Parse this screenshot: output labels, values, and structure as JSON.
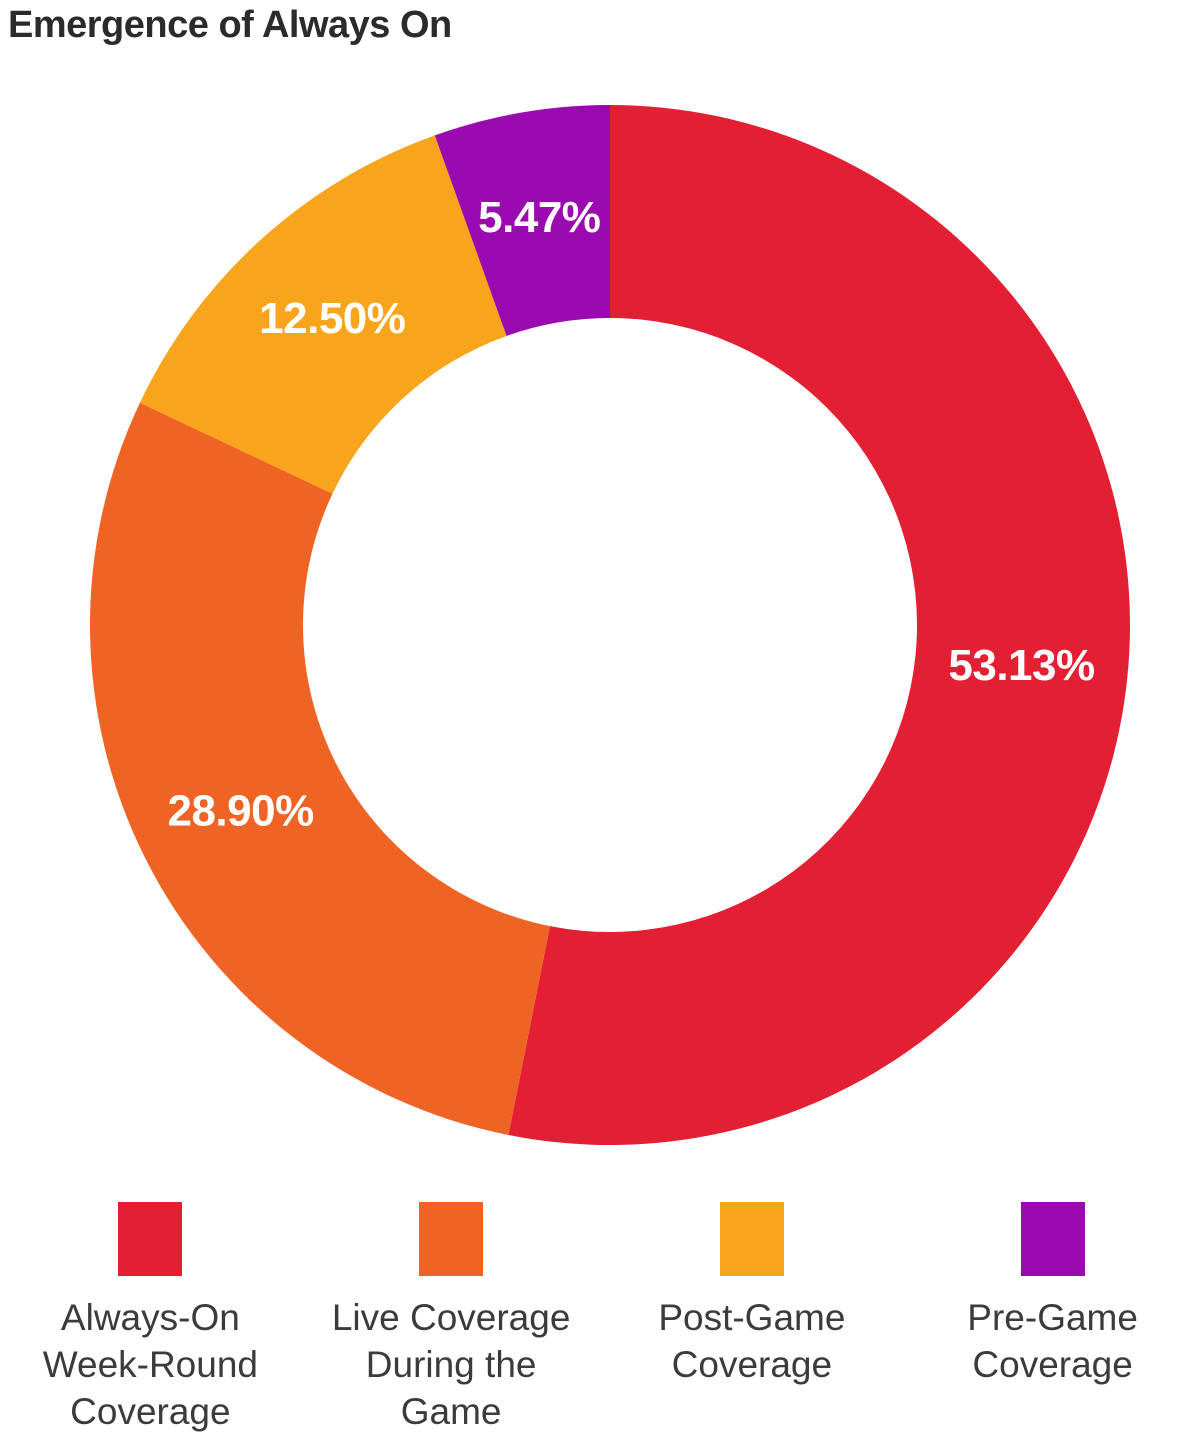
{
  "title": "Emergence of Always On",
  "chart_data": {
    "type": "pie",
    "subtype": "donut",
    "title": "Emergence of Always On",
    "direction": "clockwise",
    "start_angle_deg": 0,
    "inner_radius_ratio": 0.59,
    "legend_position": "bottom",
    "grid": false,
    "slice_label_color": "#FFFFFF",
    "title_color": "#2B2B2B",
    "legend_text_color": "#3B3B3B",
    "segments": [
      {
        "label": "Always-On Week-Round Coverage",
        "value": 53.13,
        "value_label": "53.13%",
        "color": "#E21F33",
        "legend_lines": [
          "Always-On",
          "Week-Round",
          "Coverage"
        ]
      },
      {
        "label": "Live Coverage During the Game",
        "value": 28.9,
        "value_label": "28.90%",
        "color": "#EF6424",
        "legend_lines": [
          "Live Coverage",
          "During the",
          "Game"
        ]
      },
      {
        "label": "Post-Game Coverage",
        "value": 12.5,
        "value_label": "12.50%",
        "color": "#F8A41C",
        "legend_lines": [
          "Post-Game",
          "Coverage"
        ]
      },
      {
        "label": "Pre-Game Coverage",
        "value": 5.47,
        "value_label": "5.47%",
        "color": "#9A0AB0",
        "legend_lines": [
          "Pre-Game",
          "Coverage"
        ]
      }
    ]
  }
}
